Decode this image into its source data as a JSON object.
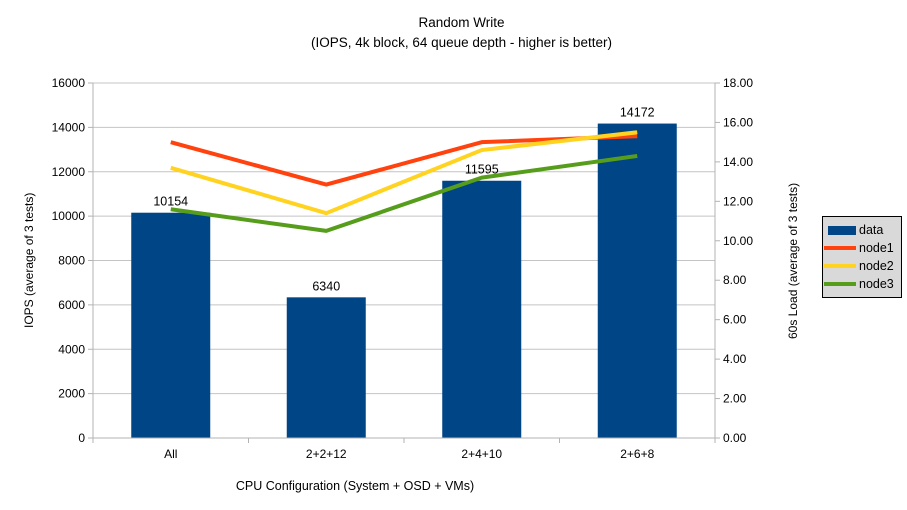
{
  "chart_data": {
    "type": "bar+line",
    "title": "Random Write",
    "subtitle": "(IOPS, 4k block, 64 queue depth - higher is better)",
    "categories": [
      "All",
      "2+2+12",
      "2+4+10",
      "2+6+8"
    ],
    "bar_series": {
      "name": "data",
      "axis": "left",
      "color": "#004586",
      "values": [
        10154,
        6340,
        11595,
        14172
      ],
      "value_labels": [
        "10154",
        "6340",
        "11595",
        "14172"
      ]
    },
    "line_series": [
      {
        "name": "node1",
        "axis": "right",
        "color": "#ff420e",
        "values": [
          15.0,
          12.85,
          15.0,
          15.3
        ]
      },
      {
        "name": "node2",
        "axis": "right",
        "color": "#ffd320",
        "values": [
          13.7,
          11.4,
          14.6,
          15.5
        ]
      },
      {
        "name": "node3",
        "axis": "right",
        "color": "#579d1c",
        "values": [
          11.6,
          10.5,
          13.2,
          14.3
        ]
      }
    ],
    "left_axis": {
      "title": "IOPS (average of 3 tests)",
      "range": [
        0,
        16000
      ],
      "step": 2000,
      "tick_labels": [
        "0",
        "2000",
        "4000",
        "6000",
        "8000",
        "10000",
        "12000",
        "14000",
        "16000"
      ]
    },
    "right_axis": {
      "title": "60s Load (average of 3 tests)",
      "range": [
        0,
        18
      ],
      "step": 2,
      "tick_labels": [
        "0.00",
        "2.00",
        "4.00",
        "6.00",
        "8.00",
        "10.00",
        "12.00",
        "14.00",
        "16.00",
        "18.00"
      ]
    },
    "x_axis": {
      "title": "CPU Configuration (System + OSD + VMs)"
    },
    "grid": true,
    "legend_position": "right",
    "legend_items": [
      {
        "label": "data",
        "color": "#004586",
        "type": "bar"
      },
      {
        "label": "node1",
        "color": "#ff420e",
        "type": "line"
      },
      {
        "label": "node2",
        "color": "#ffd320",
        "type": "line"
      },
      {
        "label": "node3",
        "color": "#579d1c",
        "type": "line"
      }
    ]
  },
  "colors": {
    "background": "#ffffff",
    "grid": "#c4c4c4",
    "axis": "#b3b3b3",
    "text": "#000000",
    "legend_bg": "#d9d9d9",
    "legend_border": "#000000"
  }
}
